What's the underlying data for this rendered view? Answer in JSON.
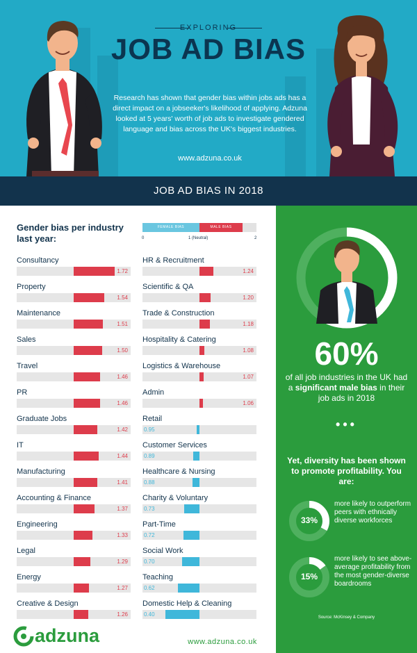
{
  "header": {
    "kicker": "EXPLORING",
    "title": "JOB AD BIAS",
    "intro": "Research has shown that gender bias within jobs ads has a direct impact on a jobseeker's likelihood of applying. Adzuna looked at 5 years' worth of job ads to investigate gendered language and bias across the UK's biggest industries.",
    "url": "www.adzuna.co.uk"
  },
  "section_title": "JOB AD BIAS IN 2018",
  "chart_title": "Gender bias per industry last year:",
  "legend": {
    "female": "FEMALE BIAS",
    "male": "MALE BIAS",
    "tick_0": "0",
    "tick_1": "1 (Neutral)",
    "tick_2": "2"
  },
  "colors": {
    "male": "#dd3c4b",
    "female": "#3fb7da",
    "green": "#2b9c3d",
    "navy": "#12334c",
    "teal": "#22aac6"
  },
  "chart_data": {
    "type": "bar",
    "xlim": [
      0,
      2
    ],
    "neutral": 1,
    "left_column": [
      {
        "name": "Consultancy",
        "value": 1.72
      },
      {
        "name": "Property",
        "value": 1.54
      },
      {
        "name": "Maintenance",
        "value": 1.51
      },
      {
        "name": "Sales",
        "value": 1.5
      },
      {
        "name": "Travel",
        "value": 1.46
      },
      {
        "name": "PR",
        "value": 1.46
      },
      {
        "name": "Graduate Jobs",
        "value": 1.42
      },
      {
        "name": "IT",
        "value": 1.44
      },
      {
        "name": "Manufacturing",
        "value": 1.41
      },
      {
        "name": "Accounting & Finance",
        "value": 1.37
      },
      {
        "name": "Engineering",
        "value": 1.33
      },
      {
        "name": "Legal",
        "value": 1.29
      },
      {
        "name": "Energy",
        "value": 1.27
      },
      {
        "name": "Creative & Design",
        "value": 1.26
      }
    ],
    "right_column": [
      {
        "name": "HR & Recruitment",
        "value": 1.24
      },
      {
        "name": "Scientific & QA",
        "value": 1.2
      },
      {
        "name": "Trade & Construction",
        "value": 1.18
      },
      {
        "name": "Hospitality & Catering",
        "value": 1.08
      },
      {
        "name": "Logistics & Warehouse",
        "value": 1.07
      },
      {
        "name": "Admin",
        "value": 1.06
      },
      {
        "name": "Retail",
        "value": 0.95
      },
      {
        "name": "Customer Services",
        "value": 0.89
      },
      {
        "name": "Healthcare & Nursing",
        "value": 0.88
      },
      {
        "name": "Charity & Voluntary",
        "value": 0.73
      },
      {
        "name": "Part-Time",
        "value": 0.72
      },
      {
        "name": "Social Work",
        "value": 0.7
      },
      {
        "name": "Teaching",
        "value": 0.62
      },
      {
        "name": "Domestic Help & Cleaning",
        "value": 0.4
      }
    ]
  },
  "panel": {
    "big_stat": "60%",
    "stat_pre": "of all job industries in the UK had a ",
    "stat_bold": "significant male bias",
    "stat_post": " in their job ads in 2018",
    "dots": "•••",
    "diversity": "Yet, diversity has been shown to promote profitability. You are:",
    "donut1_value": 0.33,
    "donut1_label": "33%",
    "donut1_text": "more likely to outperform peers with ethnically diverse workforces",
    "donut2_value": 0.15,
    "donut2_label": "15%",
    "donut2_text": "more likely to see above-average profitability from the most gender-diverse boardrooms",
    "source": "Source: McKinsey & Company"
  },
  "footer": {
    "logo": "adzuna",
    "url": "www.adzuna.co.uk"
  }
}
